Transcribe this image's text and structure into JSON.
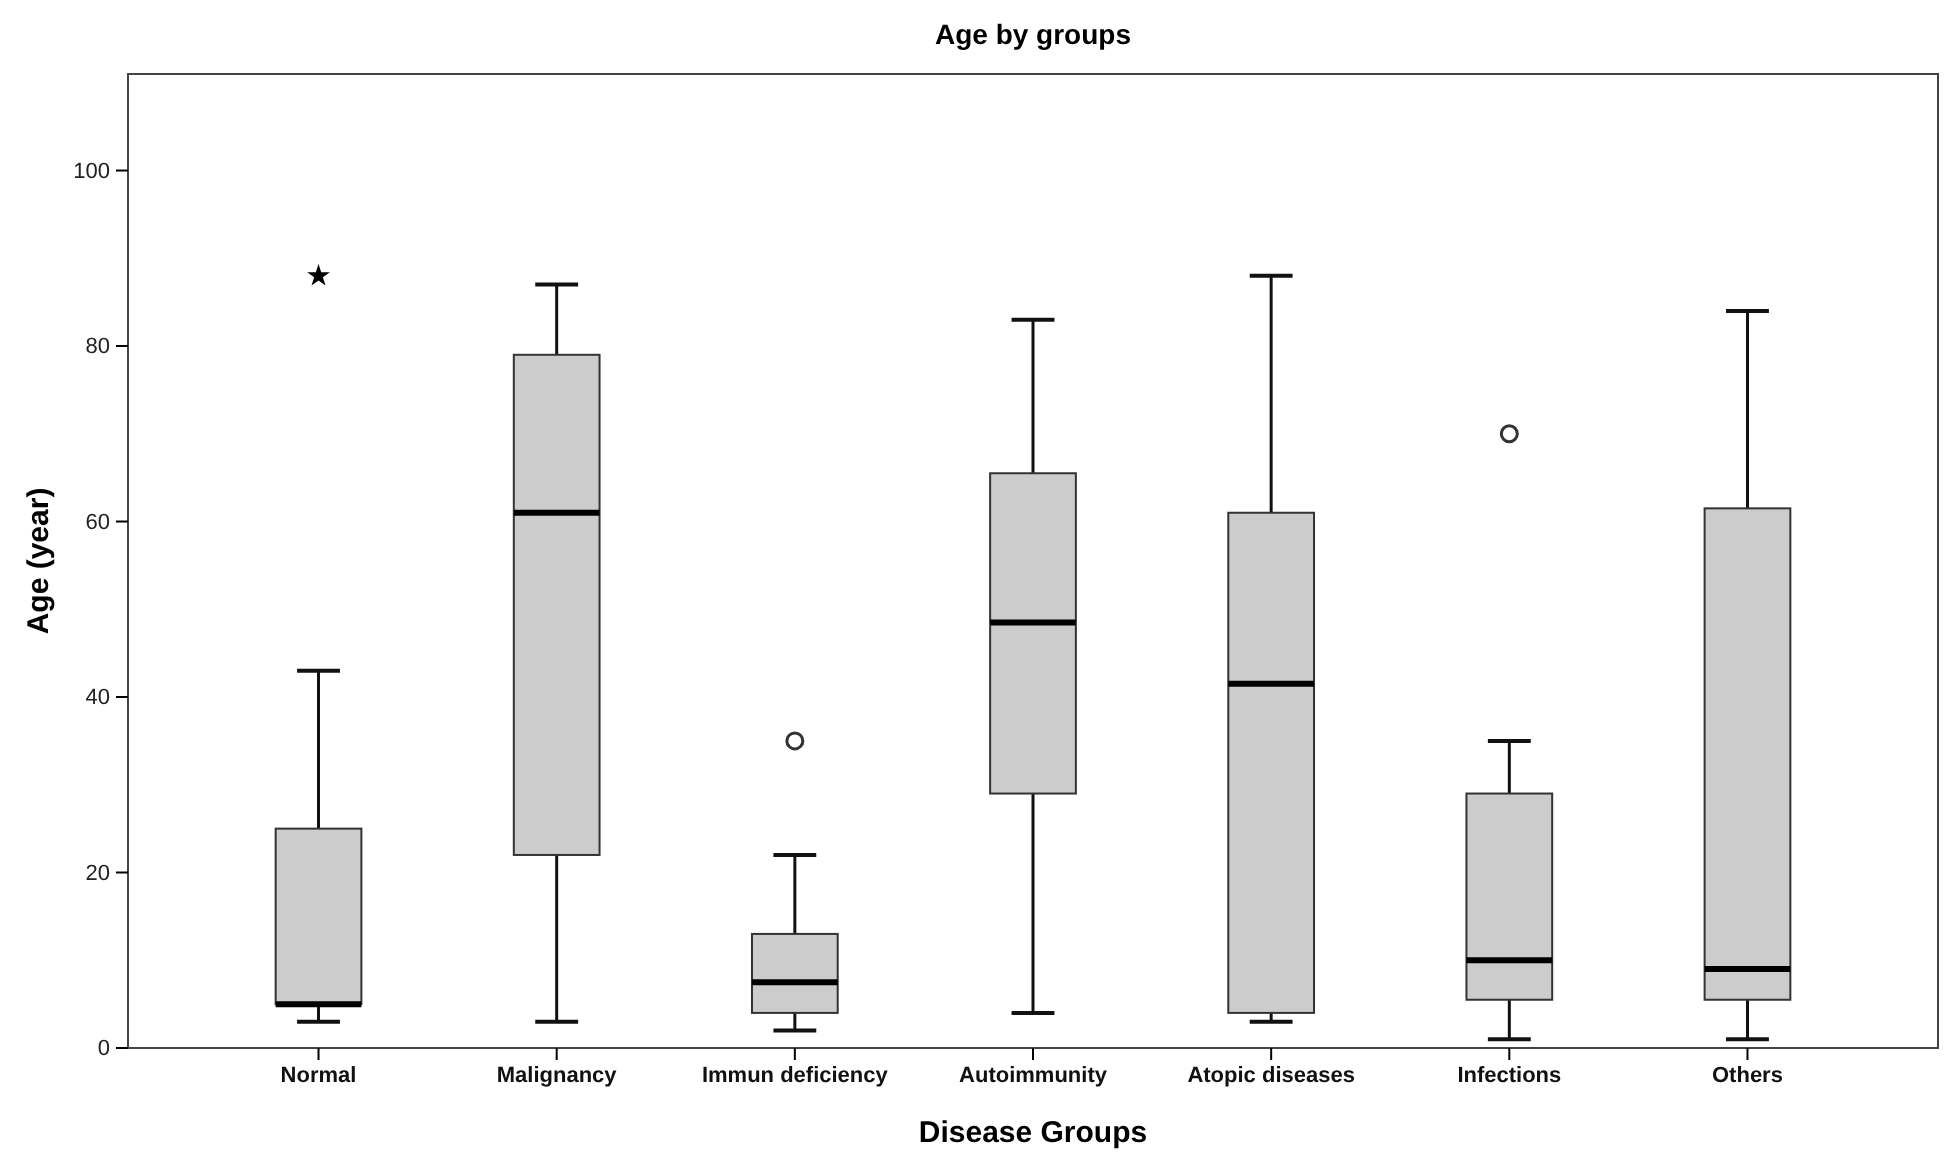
{
  "chart_data": {
    "type": "box",
    "title": "Age by groups",
    "xlabel": "Disease Groups",
    "ylabel": "Age (year)",
    "categories": [
      "Normal",
      "Malignancy",
      "Immun deficiency",
      "Autoimmunity",
      "Atopic diseases",
      "Infections",
      "Others"
    ],
    "color": "#cccccc",
    "boxes": [
      {
        "low": 3,
        "q1": 5,
        "median": 5,
        "q3": 25,
        "high": 43
      },
      {
        "low": 3,
        "q1": 22,
        "median": 61,
        "q3": 79,
        "high": 87
      },
      {
        "low": 2,
        "q1": 4,
        "median": 7.5,
        "q3": 13,
        "high": 22,
        "outliers": [
          35
        ]
      },
      {
        "low": 4,
        "q1": 29,
        "median": 48.5,
        "q3": 65.5,
        "high": 83
      },
      {
        "low": 3,
        "q1": 4,
        "median": 41.5,
        "q3": 61,
        "high": 88
      },
      {
        "low": 1,
        "q1": 5.5,
        "median": 10,
        "q3": 29,
        "high": 35,
        "outliers": [
          70
        ]
      },
      {
        "low": 1,
        "q1": 5.5,
        "median": 9,
        "q3": 61.5,
        "high": 84
      }
    ],
    "series": [
      {
        "type": "scatter",
        "x": [
          "Normal"
        ],
        "values": [
          88
        ],
        "marker": "star",
        "color": "#000000"
      }
    ],
    "ylim": [
      0,
      111
    ],
    "yticks": [
      0,
      20,
      40,
      60,
      80,
      100
    ],
    "grid": false
  }
}
